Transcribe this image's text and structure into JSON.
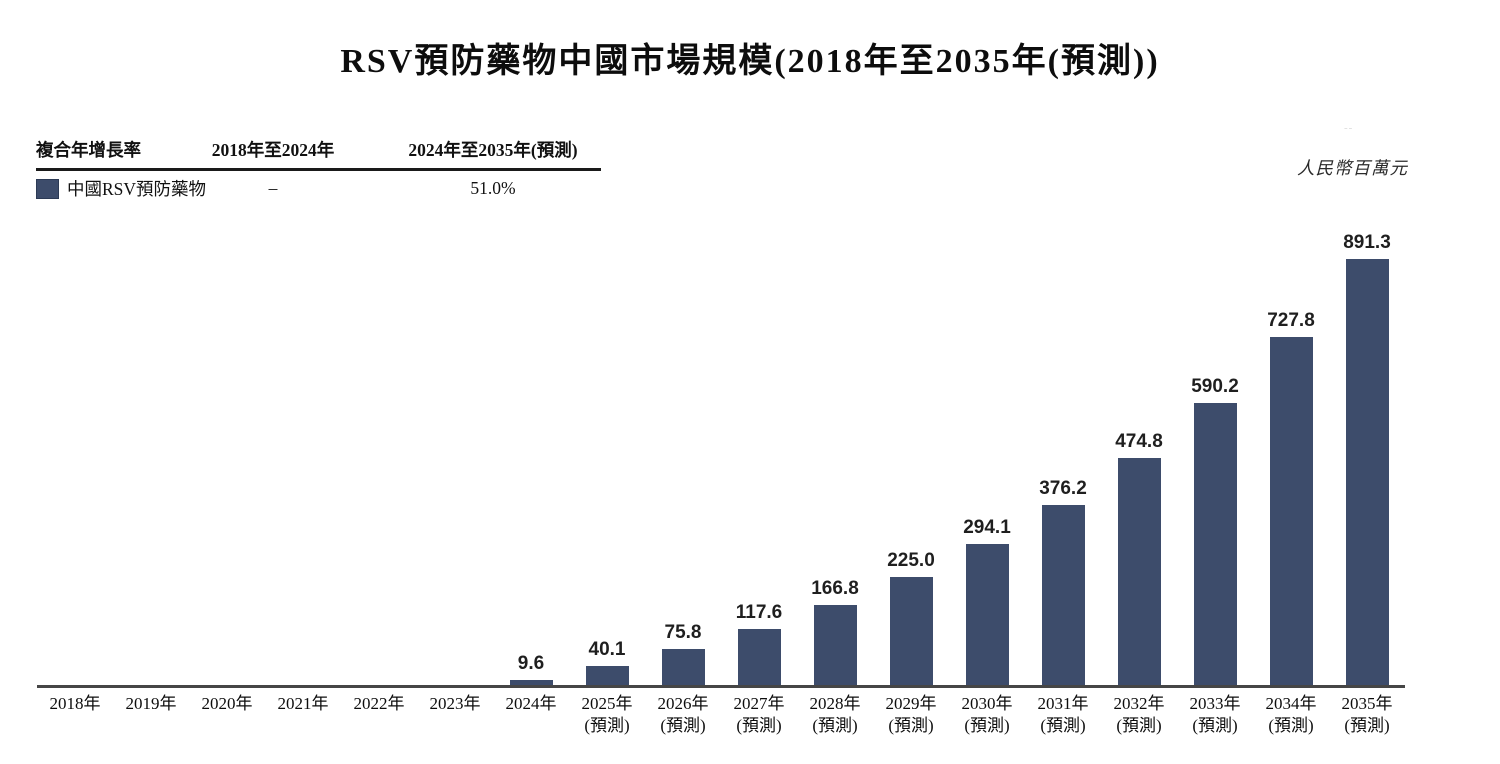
{
  "title": "RSV預防藥物中國市場規模(2018年至2035年(預測))",
  "unit_label": "人民幣百萬元",
  "faint_mark": "--",
  "colors": {
    "bar": "#3d4c6b",
    "axis": "#464646",
    "text": "#1a1a1a"
  },
  "cagr_table": {
    "col_growth_header": "複合年增長率",
    "col_period1_header": "2018年至2024年",
    "col_period2_header": "2024年至2035年(預測)",
    "row": {
      "label": "中國RSV預防藥物",
      "period1_value": "–",
      "period2_value": "51.0%"
    }
  },
  "chart_data": {
    "type": "bar",
    "title": "RSV預防藥物中國市場規模(2018年至2035年(預測))",
    "ylabel": "人民幣百萬元",
    "series_name": "中國RSV預防藥物",
    "categories": [
      "2018年",
      "2019年",
      "2020年",
      "2021年",
      "2022年",
      "2023年",
      "2024年",
      "2025年",
      "2026年",
      "2027年",
      "2028年",
      "2029年",
      "2030年",
      "2031年",
      "2032年",
      "2033年",
      "2034年",
      "2035年"
    ],
    "forecast_note": "(預測)",
    "forecast_flags": [
      false,
      false,
      false,
      false,
      false,
      false,
      false,
      true,
      true,
      true,
      true,
      true,
      true,
      true,
      true,
      true,
      true,
      true
    ],
    "values": [
      null,
      null,
      null,
      null,
      null,
      null,
      9.6,
      40.1,
      75.8,
      117.6,
      166.8,
      225.0,
      294.1,
      376.2,
      474.8,
      590.2,
      727.8,
      891.3
    ],
    "cagr_2018_2024": "–",
    "cagr_2024_2035": "51.0%",
    "ylim": [
      0,
      958
    ],
    "grid": false,
    "legend_position": "top-left-table",
    "bar_color": "#3d4c6b"
  }
}
